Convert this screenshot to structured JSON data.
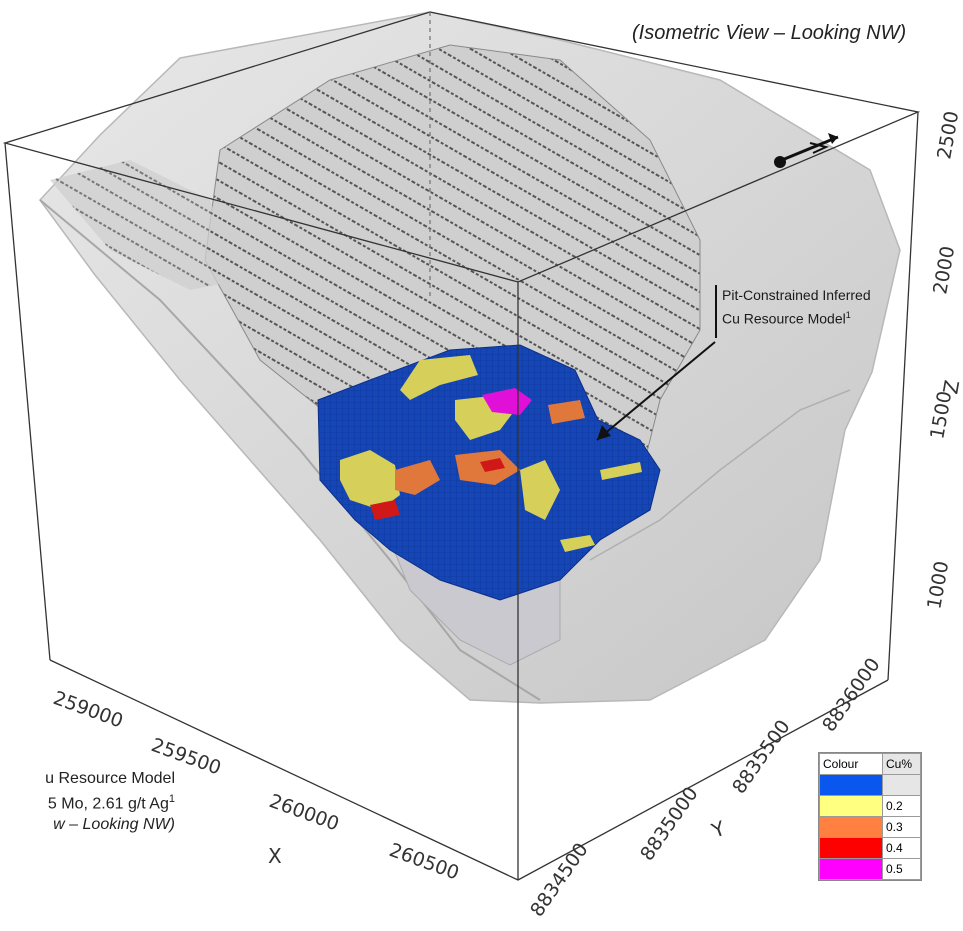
{
  "view_title": "(Isometric View – Looking NW)",
  "callout": {
    "line1": "Pit-Constrained Inferred",
    "line2": "Cu Resource Model",
    "superscript": "1"
  },
  "caption": {
    "line1": "u Resource Model",
    "line2": "5 Mo, 2.61 g/t Ag",
    "line2_superscript": "1",
    "line3": "w – Looking NW)"
  },
  "axes": {
    "x_label": "X",
    "y_label": "Y",
    "z_label": "Z",
    "x_ticks": [
      "259000",
      "259500",
      "260000",
      "260500"
    ],
    "y_ticks": [
      "8834500",
      "8835000",
      "8835500",
      "8836000"
    ],
    "z_ticks": [
      "1000",
      "1500",
      "2000",
      "2500"
    ]
  },
  "legend": {
    "header_colour": "Colour",
    "header_value": "Cu%",
    "rows": [
      {
        "color": "#0a57f0",
        "value": ""
      },
      {
        "color": "#ffff80",
        "value": "0.2"
      },
      {
        "color": "#ff8040",
        "value": "0.3"
      },
      {
        "color": "#ff0000",
        "value": "0.4"
      },
      {
        "color": "#ff00ff",
        "value": "0.5"
      }
    ]
  },
  "colors": {
    "terrain": "#d9d9d9",
    "pit_hatch": "#666666",
    "blue_grade": "#1446b8",
    "yellow_grade": "#d6d05a",
    "orange_grade": "#e0783c",
    "red_grade": "#d01818",
    "magenta_grade": "#e010d8"
  },
  "north_arrow_icon": "north-arrow-icon"
}
